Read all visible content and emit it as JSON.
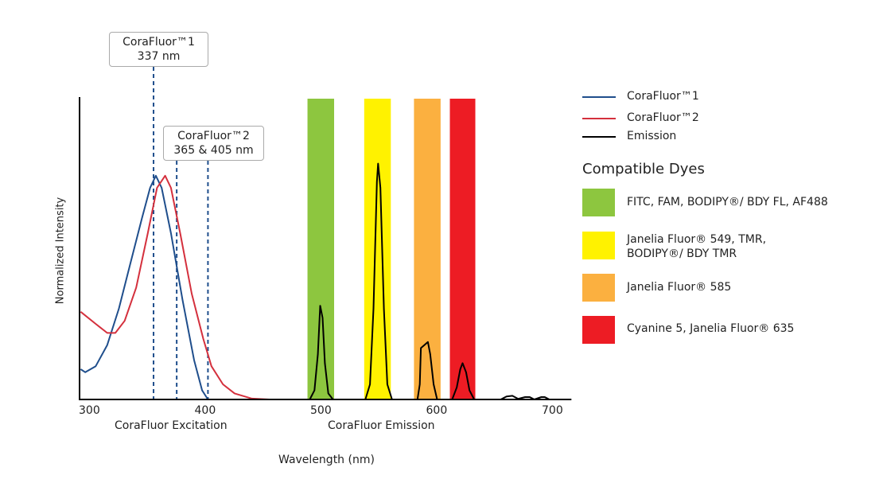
{
  "chart_data": {
    "type": "line",
    "xlabel": "Wavelength (nm)",
    "ylabel": "Normalized Intensity",
    "xlim": [
      292,
      716
    ],
    "ylim": [
      0,
      1
    ],
    "x_ticks": [
      300,
      400,
      500,
      600,
      700
    ],
    "section_labels": [
      "CoraFluor Excitation",
      "CoraFluor Emission"
    ],
    "grid": false,
    "legend_position": "right",
    "series": [
      {
        "name": "CoraFluor™1",
        "color": "#1f4e8c",
        "points": [
          [
            292,
            0.1
          ],
          [
            296,
            0.09
          ],
          [
            305,
            0.11
          ],
          [
            315,
            0.18
          ],
          [
            325,
            0.3
          ],
          [
            335,
            0.45
          ],
          [
            345,
            0.6
          ],
          [
            352,
            0.7
          ],
          [
            357,
            0.74
          ],
          [
            362,
            0.7
          ],
          [
            370,
            0.55
          ],
          [
            380,
            0.33
          ],
          [
            390,
            0.13
          ],
          [
            397,
            0.03
          ],
          [
            402,
            0
          ]
        ]
      },
      {
        "name": "CoraFluor™2",
        "color": "#d4303d",
        "points": [
          [
            292,
            0.29
          ],
          [
            305,
            0.25
          ],
          [
            315,
            0.22
          ],
          [
            322,
            0.22
          ],
          [
            330,
            0.26
          ],
          [
            340,
            0.37
          ],
          [
            350,
            0.55
          ],
          [
            358,
            0.7
          ],
          [
            365,
            0.74
          ],
          [
            370,
            0.7
          ],
          [
            378,
            0.55
          ],
          [
            388,
            0.35
          ],
          [
            398,
            0.2
          ],
          [
            405,
            0.11
          ],
          [
            415,
            0.05
          ],
          [
            425,
            0.02
          ],
          [
            440,
            0.003
          ],
          [
            455,
            0
          ]
        ]
      },
      {
        "name": "Emission",
        "color": "#000000",
        "points": [
          [
            430,
            0
          ],
          [
            490,
            0
          ],
          [
            494,
            0.03
          ],
          [
            497,
            0.15
          ],
          [
            499,
            0.31
          ],
          [
            501,
            0.27
          ],
          [
            503,
            0.12
          ],
          [
            506,
            0.02
          ],
          [
            510,
            0
          ],
          [
            538,
            0
          ],
          [
            542,
            0.05
          ],
          [
            545,
            0.3
          ],
          [
            548,
            0.72
          ],
          [
            549,
            0.78
          ],
          [
            551,
            0.7
          ],
          [
            554,
            0.3
          ],
          [
            557,
            0.05
          ],
          [
            561,
            0
          ],
          [
            583,
            0
          ],
          [
            585,
            0.05
          ],
          [
            586,
            0.17
          ],
          [
            589,
            0.18
          ],
          [
            592,
            0.19
          ],
          [
            594,
            0.15
          ],
          [
            597,
            0.05
          ],
          [
            600,
            0
          ],
          [
            613,
            0
          ],
          [
            617,
            0.04
          ],
          [
            620,
            0.1
          ],
          [
            622,
            0.12
          ],
          [
            625,
            0.09
          ],
          [
            628,
            0.03
          ],
          [
            632,
            0
          ],
          [
            655,
            0
          ],
          [
            660,
            0.01
          ],
          [
            665,
            0.012
          ],
          [
            670,
            0.002
          ],
          [
            676,
            0.008
          ],
          [
            680,
            0.008
          ],
          [
            684,
            0
          ],
          [
            690,
            0.008
          ],
          [
            693,
            0.008
          ],
          [
            697,
            0
          ],
          [
            716,
            0
          ]
        ]
      }
    ],
    "excitation_lines": [
      355,
      375,
      402
    ],
    "annotations": [
      {
        "line1": "CoraFluor™1",
        "line2": "337 nm"
      },
      {
        "line1": "CoraFluor™2",
        "line2": "365 & 405 nm"
      }
    ],
    "dye_bands": [
      {
        "range": [
          488,
          511
        ],
        "color": "#8dc63f",
        "label": "FITC, FAM, BODIPY®/ BDY FL, AF488"
      },
      {
        "range": [
          537,
          560
        ],
        "color": "#fff200",
        "label": "Janelia Fluor® 549, TMR,\nBODIPY®/ BDY TMR",
        "label_lines": [
          "Janelia Fluor® 549, TMR,",
          "BODIPY®/ BDY TMR"
        ]
      },
      {
        "range": [
          580,
          603
        ],
        "color": "#fbb040",
        "label": "Janelia Fluor® 585"
      },
      {
        "range": [
          611,
          633
        ],
        "color": "#ed1c24",
        "label": "Cyanine 5, Janelia Fluor® 635"
      }
    ],
    "dyes_title": "Compatible Dyes"
  }
}
